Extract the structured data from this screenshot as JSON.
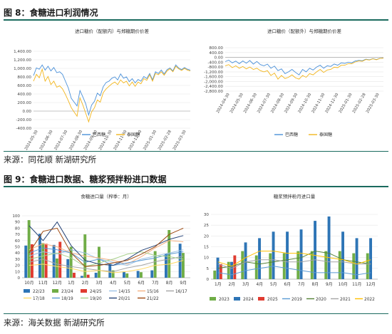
{
  "fig8": {
    "title": "图 8：食糖进口利润情况",
    "source": "来源：同花顺  新湖研究所"
  },
  "fig9": {
    "title": "图 9：食糖进口数据、糖浆预拌粉进口数据",
    "source": "来源：海关数据  新湖研究所"
  },
  "chart_data": [
    {
      "type": "line",
      "title": "进口糖价（配额内）与郑糖期价价差",
      "ylim": [
        -400,
        1400
      ],
      "yticks": [
        "1,400.00",
        "1,200.00",
        "1,000.00",
        "800.00",
        "600.00",
        "400.00",
        "200.00",
        "0.00",
        "-200.00",
        "-400.00"
      ],
      "x_labels": [
        "2024-05-30",
        "2024-06-30",
        "2024-07-30",
        "2024-08-30",
        "2024-09-30",
        "2024-10-30",
        "2024-11-30",
        "2024-12-30",
        "2025-01-30",
        "2025-02-28",
        "2025-03-30"
      ],
      "series": [
        {
          "name": "巴西糖",
          "color": "#4a90d9",
          "values": [
            830,
            1010,
            980,
            1080,
            960,
            1050,
            940,
            1020,
            900,
            920,
            860,
            700,
            540,
            300,
            210,
            120,
            480,
            330,
            170,
            -90,
            140,
            230,
            420,
            360,
            570,
            670,
            700,
            770,
            800,
            730,
            870,
            770,
            800,
            690,
            760,
            660,
            740,
            700,
            810,
            760,
            880,
            730,
            920,
            880,
            960,
            870,
            970,
            1010,
            940,
            1080,
            1010,
            970,
            1020,
            980,
            960
          ]
        },
        {
          "name": "泰国糖",
          "color": "#f2b51d",
          "values": [
            700,
            860,
            780,
            980,
            700,
            810,
            620,
            700,
            560,
            590,
            520,
            390,
            240,
            80,
            -20,
            -120,
            310,
            140,
            -50,
            -250,
            -20,
            80,
            260,
            210,
            430,
            520,
            580,
            640,
            680,
            620,
            730,
            660,
            700,
            590,
            680,
            580,
            680,
            640,
            760,
            720,
            850,
            700,
            880,
            850,
            920,
            840,
            940,
            990,
            920,
            1050,
            990,
            950,
            1000,
            960,
            940
          ]
        }
      ]
    },
    {
      "type": "line",
      "title": "进口糖价（配额外）与郑糖期价价差",
      "ylim": [
        -2800,
        800
      ],
      "yticks": [
        "800.00",
        "400.00",
        "0.00",
        "-400.00",
        "-800.00",
        "-1,200.00",
        "-1,600.00",
        "-2,000.00",
        "-2,400.00",
        "-2,800.00"
      ],
      "x_labels": [
        "2024-04-30",
        "2024-05-30",
        "2024-06-30",
        "2024-07-30",
        "2024-08-30",
        "2024-09-30",
        "2024-10-30",
        "2024-11-30",
        "2024-12-30",
        "2025-01-30",
        "2025-02-28",
        "2025-03-30"
      ],
      "series": [
        {
          "name": "巴西糖",
          "color": "#4a90d9",
          "values": [
            -350,
            -230,
            -450,
            -310,
            -520,
            -300,
            -480,
            -260,
            -560,
            -340,
            -600,
            -700,
            -560,
            -900,
            -720,
            -1100,
            -950,
            -1350,
            -1200,
            -1000,
            -1250,
            -1450,
            -1000,
            -1200,
            -900,
            -1050,
            -800,
            -650,
            -900,
            -700,
            -750,
            -550,
            -650,
            -450,
            -500,
            -400,
            -450,
            -300,
            -250,
            -280,
            -150,
            -200,
            -100,
            -180,
            -80,
            -60
          ]
        },
        {
          "name": "泰国糖",
          "color": "#f2b51d",
          "values": [
            -700,
            -600,
            -850,
            -700,
            -900,
            -760,
            -950,
            -800,
            -1000,
            -900,
            -1100,
            -1200,
            -1100,
            -1500,
            -1300,
            -1800,
            -1500,
            -1750,
            -1650,
            -1450,
            -1700,
            -1800,
            -1500,
            -1650,
            -1350,
            -1450,
            -1200,
            -1000,
            -1250,
            -1050,
            -1000,
            -820,
            -850,
            -650,
            -650,
            -520,
            -520,
            -380,
            -300,
            -320,
            -180,
            -220,
            -120,
            -200,
            -90,
            -70
          ]
        }
      ]
    },
    {
      "type": "bar",
      "title": "食糖进口量（榨季：月）",
      "categories": [
        "10月",
        "11月",
        "12月",
        "1月",
        "2月",
        "3月",
        "4月",
        "5月",
        "6月",
        "7月",
        "8月",
        "9月"
      ],
      "ylim": [
        0,
        100
      ],
      "yticks": [
        "100",
        "90",
        "80",
        "70",
        "60",
        "50",
        "40",
        "30",
        "20",
        "10",
        "0"
      ],
      "series": [
        {
          "name": "22/23",
          "kind": "bar",
          "color": "#2e75b6",
          "values": [
            52,
            71,
            53,
            30,
            3,
            8,
            22,
            10,
            11,
            12,
            39,
            55
          ]
        },
        {
          "name": "23/24",
          "kind": "bar",
          "color": "#70ad47",
          "values": [
            93,
            56,
            31,
            50,
            70,
            50,
            12,
            7,
            9,
            43,
            77,
            40
          ]
        },
        {
          "name": "24/25",
          "kind": "bar",
          "color": "#e03c31",
          "values": [
            54,
            55,
            58,
            8,
            5,
            null,
            null,
            null,
            null,
            null,
            null,
            null
          ]
        },
        {
          "name": "14/15",
          "kind": "line",
          "color": "#9dc3e6",
          "values": [
            35,
            42,
            38,
            45,
            40,
            30,
            25,
            20,
            30,
            35,
            40,
            45
          ]
        },
        {
          "name": "15/16",
          "kind": "line",
          "color": "#f4b183",
          "values": [
            45,
            55,
            50,
            40,
            35,
            32,
            28,
            22,
            34,
            48,
            60,
            58
          ]
        },
        {
          "name": "16/17",
          "kind": "line",
          "color": "#a5a5a5",
          "values": [
            25,
            30,
            22,
            18,
            15,
            12,
            10,
            16,
            20,
            26,
            30,
            35
          ]
        },
        {
          "name": "17/18",
          "kind": "line",
          "color": "#ffd966",
          "values": [
            20,
            22,
            18,
            15,
            10,
            12,
            8,
            10,
            14,
            20,
            22,
            28
          ]
        },
        {
          "name": "18/19",
          "kind": "line",
          "color": "#5b9bd5",
          "values": [
            40,
            48,
            45,
            40,
            25,
            30,
            20,
            24,
            28,
            32,
            38,
            42
          ]
        },
        {
          "name": "19/20",
          "kind": "line",
          "color": "#a9d18e",
          "values": [
            30,
            35,
            40,
            32,
            18,
            24,
            30,
            38,
            42,
            36,
            34,
            30
          ]
        },
        {
          "name": "20/21",
          "kind": "line",
          "color": "#264478",
          "values": [
            84,
            60,
            90,
            52,
            28,
            22,
            20,
            30,
            44,
            52,
            62,
            68
          ]
        },
        {
          "name": "21/22",
          "kind": "line",
          "color": "#9e480e",
          "values": [
            40,
            75,
            80,
            40,
            18,
            20,
            24,
            28,
            38,
            50,
            70,
            80
          ]
        }
      ]
    },
    {
      "type": "bar",
      "title": "糖浆预拌粉月进口量",
      "categories": [
        "1月",
        "2月",
        "3月",
        "4月",
        "5月",
        "6月",
        "7月",
        "8月",
        "9月",
        "10月",
        "11月",
        "12月"
      ],
      "ylim": [
        0,
        30
      ],
      "yticks": [
        "30",
        "25",
        "20",
        "15",
        "10",
        "5",
        "0"
      ],
      "series": [
        {
          "name": "2023",
          "kind": "bar",
          "color": "#70ad47",
          "values": [
            4,
            8,
            13,
            11,
            12,
            12,
            13,
            13,
            13,
            13,
            12,
            12
          ]
        },
        {
          "name": "2024",
          "kind": "bar",
          "color": "#2e75b6",
          "values": [
            10,
            8,
            17,
            19,
            22,
            22,
            23,
            27,
            29,
            22,
            19,
            19
          ]
        },
        {
          "name": "2025",
          "kind": "bar",
          "color": "#e03c31",
          "values": [
            7,
            11,
            null,
            null,
            null,
            null,
            null,
            null,
            null,
            null,
            null,
            null
          ]
        },
        {
          "name": "2019",
          "kind": "line",
          "color": "#5b9bd5",
          "values": [
            3,
            2,
            4,
            5,
            6,
            5,
            4,
            3,
            3,
            3,
            2,
            3
          ]
        },
        {
          "name": "2020",
          "kind": "line",
          "color": "#548235",
          "values": [
            5,
            6,
            8,
            7,
            8,
            9,
            10,
            13,
            12,
            9,
            8,
            7
          ]
        },
        {
          "name": "2021",
          "kind": "line",
          "color": "#a5a5a5",
          "values": [
            7,
            5,
            8,
            9,
            9,
            8,
            8,
            9,
            8,
            8,
            7,
            7
          ]
        },
        {
          "name": "2022",
          "kind": "line",
          "color": "#ffc000",
          "values": [
            8,
            6,
            10,
            13,
            13,
            12,
            12,
            11,
            10,
            9,
            7,
            9
          ]
        }
      ]
    }
  ]
}
